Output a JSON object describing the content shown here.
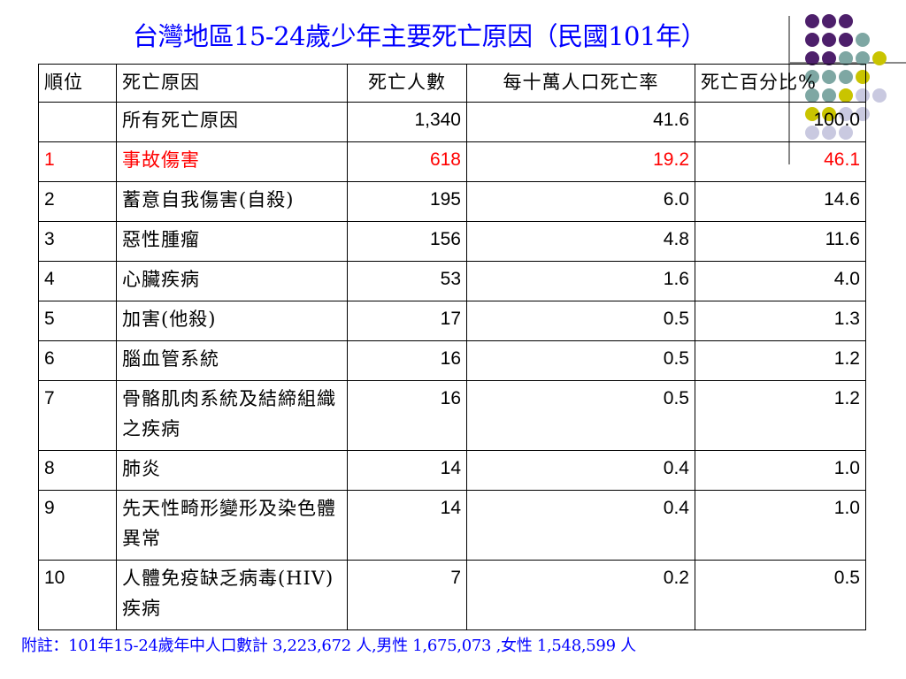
{
  "slide": {
    "title": "台灣地區15-24歲少年主要死亡原因（民國101年）",
    "colors": {
      "title": "#0000ff",
      "highlight_row": "#ff0000",
      "footnote": "#0000ff"
    },
    "decoration": {
      "dot_colors": [
        "#4d1f6b",
        "#7ea7a3",
        "#c9c400",
        "#c9c9e0"
      ]
    }
  },
  "table": {
    "headers": [
      "順位",
      "死亡原因",
      "死亡人數",
      "每十萬人口死亡率",
      "死亡百分比%"
    ],
    "rows": [
      {
        "rank": "",
        "cause": "所有死亡原因",
        "deaths": "1,340",
        "rate": "41.6",
        "percent": "100.0"
      },
      {
        "rank": "1",
        "cause": "事故傷害",
        "deaths": "618",
        "rate": "19.2",
        "percent": "46.1"
      },
      {
        "rank": "2",
        "cause": "蓄意自我傷害(自殺)",
        "deaths": "195",
        "rate": "6.0",
        "percent": "14.6"
      },
      {
        "rank": "3",
        "cause": "惡性腫瘤",
        "deaths": "156",
        "rate": "4.8",
        "percent": "11.6"
      },
      {
        "rank": "4",
        "cause": "心臟疾病",
        "deaths": "53",
        "rate": "1.6",
        "percent": "4.0"
      },
      {
        "rank": "5",
        "cause": "加害(他殺)",
        "deaths": "17",
        "rate": "0.5",
        "percent": "1.3"
      },
      {
        "rank": "6",
        "cause": "腦血管系統",
        "deaths": "16",
        "rate": "0.5",
        "percent": "1.2"
      },
      {
        "rank": "7",
        "cause": "骨骼肌肉系統及結締組織之疾病",
        "deaths": "16",
        "rate": "0.5",
        "percent": "1.2"
      },
      {
        "rank": "8",
        "cause": "肺炎",
        "deaths": "14",
        "rate": "0.4",
        "percent": "1.0"
      },
      {
        "rank": "9",
        "cause": "先天性畸形變形及染色體異常",
        "deaths": "14",
        "rate": "0.4",
        "percent": "1.0"
      },
      {
        "rank": "10",
        "cause": "人體免疫缺乏病毒(HIV)疾病",
        "deaths": "7",
        "rate": "0.2",
        "percent": "0.5"
      }
    ]
  },
  "footnote": "附註：101年15-24歲年中人口數計 3,223,672 人,男性 1,675,073 ,女性 1,548,599 人"
}
